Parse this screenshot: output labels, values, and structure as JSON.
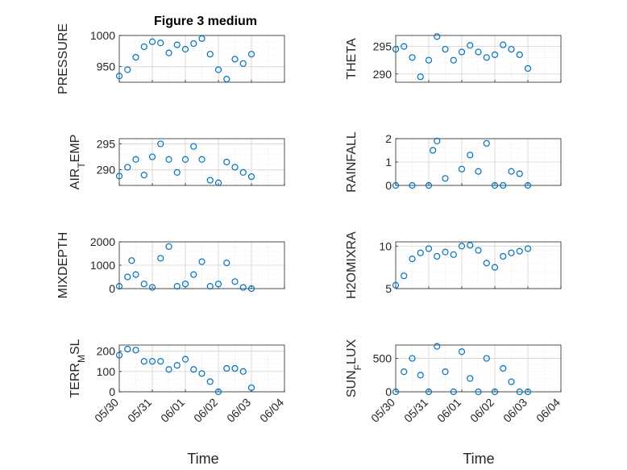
{
  "figure": {
    "title": "Figure 3 medium",
    "xlabel": "Time",
    "x_tick_labels": [
      "05/30",
      "05/31",
      "06/01",
      "06/02",
      "06/03",
      "06/04"
    ],
    "marker_color": "#0072bd"
  },
  "chart_data": [
    {
      "type": "scatter",
      "ylabel": "PRESSURE",
      "x": [
        "05/30",
        "05/30 06:00",
        "05/30 12:00",
        "05/30 18:00",
        "05/31",
        "05/31 06:00",
        "05/31 12:00",
        "05/31 18:00",
        "06/01",
        "06/01 06:00",
        "06/01 12:00",
        "06/01 18:00",
        "06/02",
        "06/02 06:00",
        "06/02 12:00",
        "06/02 18:00",
        "06/03"
      ],
      "y": [
        935,
        945,
        965,
        982,
        990,
        988,
        972,
        985,
        978,
        987,
        995,
        970,
        945,
        930,
        962,
        955,
        970
      ],
      "ylim": [
        925,
        1000
      ],
      "yticks": [
        950,
        1000
      ],
      "grid": true
    },
    {
      "type": "scatter",
      "ylabel": "THETA",
      "x": [
        "05/30",
        "05/30 06:00",
        "05/30 12:00",
        "05/30 18:00",
        "05/31",
        "05/31 06:00",
        "05/31 12:00",
        "05/31 18:00",
        "06/01",
        "06/01 06:00",
        "06/01 12:00",
        "06/01 18:00",
        "06/02",
        "06/02 06:00",
        "06/02 12:00",
        "06/02 18:00",
        "06/03"
      ],
      "y": [
        294.5,
        295,
        293,
        289.5,
        292.5,
        296.8,
        294.5,
        292.5,
        294,
        295.2,
        294,
        293,
        293.5,
        295.3,
        294.5,
        293.5,
        291
      ],
      "ylim": [
        288.5,
        297
      ],
      "yticks": [
        290,
        295
      ],
      "grid": true
    },
    {
      "type": "scatter",
      "ylabel": "AIR_TEMP",
      "x": [
        "05/30",
        "05/30 06:00",
        "05/30 12:00",
        "05/30 18:00",
        "05/31",
        "05/31 06:00",
        "05/31 12:00",
        "05/31 18:00",
        "06/01",
        "06/01 06:00",
        "06/01 12:00",
        "06/01 18:00",
        "06/02",
        "06/02 06:00",
        "06/02 12:00",
        "06/02 18:00",
        "06/03"
      ],
      "y": [
        288.8,
        290.5,
        292,
        289,
        292.5,
        295,
        292,
        289.5,
        292,
        294.5,
        292,
        288,
        287.5,
        291.5,
        290.5,
        289.5,
        288.7
      ],
      "ylim": [
        287,
        296
      ],
      "yticks": [
        290,
        295
      ],
      "grid": true
    },
    {
      "type": "scatter",
      "ylabel": "RAINFALL",
      "x": [
        "05/30",
        "05/30 12:00",
        "05/31",
        "05/31 03:00",
        "05/31 06:00",
        "05/31 12:00",
        "06/01",
        "06/01 06:00",
        "06/01 12:00",
        "06/01 18:00",
        "06/02",
        "06/02 06:00",
        "06/02 12:00",
        "06/02 18:00",
        "06/03"
      ],
      "y": [
        0,
        0,
        0,
        1.5,
        1.9,
        0.3,
        0.7,
        1.3,
        0.6,
        1.8,
        0,
        0,
        0.6,
        0.5,
        0
      ],
      "ylim": [
        0,
        2
      ],
      "yticks": [
        0,
        1,
        2
      ],
      "grid": true
    },
    {
      "type": "scatter",
      "ylabel": "MIXDEPTH",
      "x": [
        "05/30",
        "05/30 06:00",
        "05/30 09:00",
        "05/30 12:00",
        "05/30 18:00",
        "05/31",
        "05/31 06:00",
        "05/31 12:00",
        "05/31 18:00",
        "06/01",
        "06/01 06:00",
        "06/01 12:00",
        "06/01 18:00",
        "06/02",
        "06/02 06:00",
        "06/02 12:00",
        "06/02 18:00",
        "06/03"
      ],
      "y": [
        100,
        500,
        1200,
        600,
        200,
        50,
        1300,
        1800,
        100,
        200,
        600,
        1150,
        100,
        200,
        1100,
        300,
        50,
        0
      ],
      "ylim": [
        0,
        2000
      ],
      "yticks": [
        0,
        1000,
        2000
      ],
      "grid": true
    },
    {
      "type": "scatter",
      "ylabel": "H2OMIXRA",
      "x": [
        "05/30",
        "05/30 06:00",
        "05/30 12:00",
        "05/30 18:00",
        "05/31",
        "05/31 06:00",
        "05/31 12:00",
        "05/31 18:00",
        "06/01",
        "06/01 06:00",
        "06/01 12:00",
        "06/01 18:00",
        "06/02",
        "06/02 06:00",
        "06/02 12:00",
        "06/02 18:00",
        "06/03"
      ],
      "y": [
        5.4,
        6.5,
        8.5,
        9.2,
        9.7,
        8.8,
        9.3,
        9.0,
        10.0,
        10.1,
        9.5,
        8.0,
        7.5,
        8.8,
        9.2,
        9.4,
        9.7
      ],
      "ylim": [
        5,
        10.5
      ],
      "yticks": [
        5,
        10
      ],
      "grid": true
    },
    {
      "type": "scatter",
      "ylabel": "TERR_MSL",
      "x": [
        "05/30",
        "05/30 06:00",
        "05/30 12:00",
        "05/30 18:00",
        "05/31",
        "05/31 06:00",
        "05/31 12:00",
        "05/31 18:00",
        "06/01",
        "06/01 06:00",
        "06/01 12:00",
        "06/01 18:00",
        "06/02",
        "06/02 06:00",
        "06/02 12:00",
        "06/02 18:00",
        "06/03"
      ],
      "y": [
        180,
        210,
        205,
        150,
        150,
        150,
        110,
        130,
        160,
        110,
        90,
        50,
        0,
        115,
        115,
        100,
        20
      ],
      "ylim": [
        0,
        230
      ],
      "yticks": [
        0,
        100,
        200
      ],
      "grid": true
    },
    {
      "type": "scatter",
      "ylabel": "SUN_FLUX",
      "x": [
        "05/30",
        "05/30 06:00",
        "05/30 12:00",
        "05/30 18:00",
        "05/31",
        "05/31 06:00",
        "05/31 12:00",
        "05/31 18:00",
        "06/01",
        "06/01 06:00",
        "06/01 12:00",
        "06/01 18:00",
        "06/02",
        "06/02 06:00",
        "06/02 12:00",
        "06/02 18:00",
        "06/03"
      ],
      "y": [
        0,
        300,
        500,
        250,
        0,
        680,
        300,
        0,
        600,
        200,
        0,
        500,
        0,
        350,
        150,
        0,
        0
      ],
      "ylim": [
        0,
        700
      ],
      "yticks": [
        0,
        500
      ],
      "grid": true
    }
  ]
}
